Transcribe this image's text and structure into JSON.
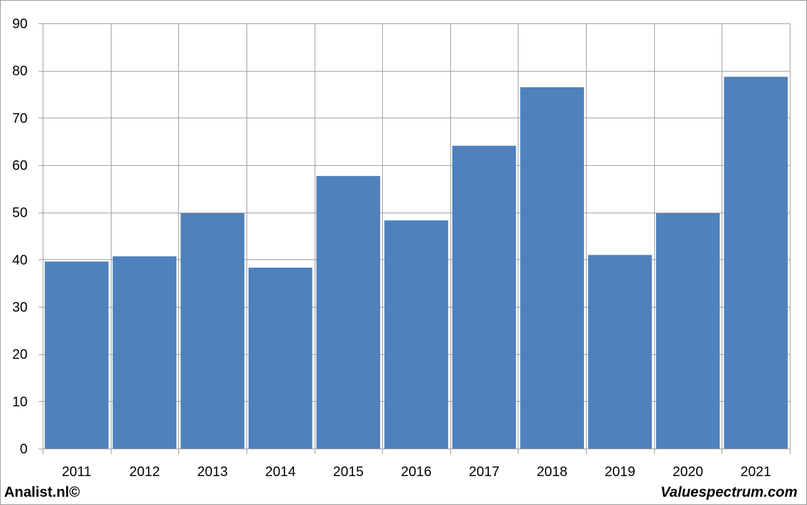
{
  "chart_data": {
    "type": "bar",
    "categories": [
      "2011",
      "2012",
      "2013",
      "2014",
      "2015",
      "2016",
      "2017",
      "2018",
      "2019",
      "2020",
      "2021"
    ],
    "values": [
      39.6,
      40.7,
      49.8,
      38.3,
      57.7,
      48.3,
      64.1,
      76.5,
      41.0,
      49.8,
      78.7
    ],
    "title": "",
    "xlabel": "",
    "ylabel": "",
    "ylim": [
      0,
      90
    ],
    "yticks": [
      0,
      10,
      20,
      30,
      40,
      50,
      60,
      70,
      80,
      90
    ],
    "grid": true,
    "legend": "none",
    "bar_color": "#4F81BD",
    "grid_color": "#A0A0A0"
  },
  "footer": {
    "left_label": "Analist.nl©",
    "right_label": "Valuespectrum.com"
  }
}
